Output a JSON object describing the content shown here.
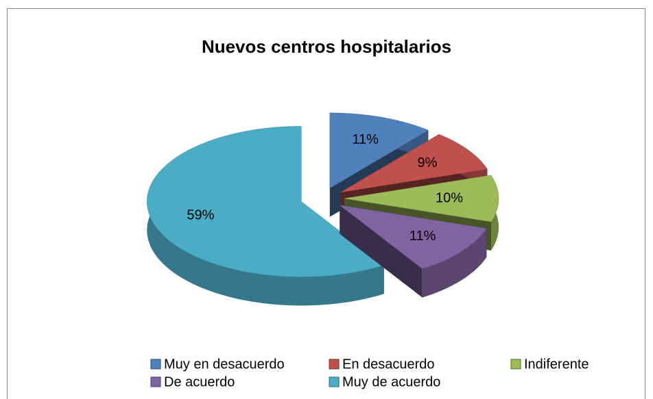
{
  "chart_data": {
    "type": "pie",
    "title": "Nuevos centros hospitalarios",
    "categories": [
      "Muy en desacuerdo",
      "En desacuerdo",
      "Indiferente",
      "De acuerdo",
      "Muy de acuerdo"
    ],
    "values": [
      11,
      9,
      10,
      11,
      59
    ],
    "value_labels": [
      "11%",
      "9%",
      "10%",
      "11%",
      "59%"
    ],
    "colors": [
      "#4f81bd",
      "#c0504d",
      "#9bbb59",
      "#8064a2",
      "#4bacc6"
    ],
    "legend": "bottom"
  }
}
